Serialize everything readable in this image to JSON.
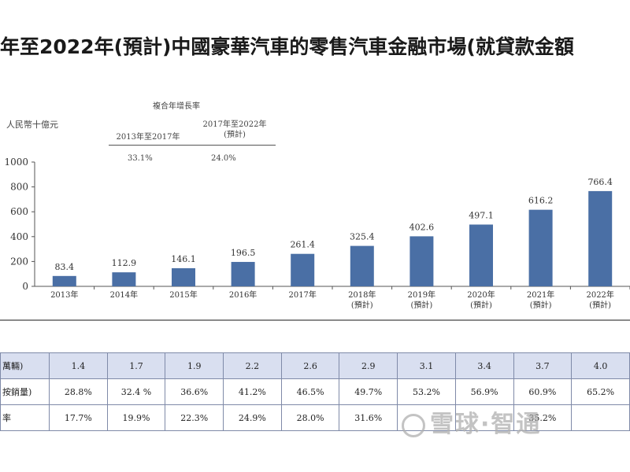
{
  "title": "年至2022年(預計)中國豪華汽車的零售汽車金融市場(就貸款金額",
  "unit_label": "人民幣十億元",
  "cagr": {
    "heading": "複合年增長率",
    "col1_label": "2013年至2017年",
    "col1_value": "33.1%",
    "col2_label_line1": "2017年至2022年",
    "col2_label_line2": "(預計)",
    "col2_value": "24.0%"
  },
  "chart_data": {
    "type": "bar",
    "categories": [
      "2013年",
      "2014年",
      "2015年",
      "2016年",
      "2017年",
      "2018年\n(預計)",
      "2019年\n(預計)",
      "2020年\n(預計)",
      "2021年\n(預計)",
      "2022年\n(預計)"
    ],
    "values": [
      83.4,
      112.9,
      146.1,
      196.5,
      261.4,
      325.4,
      402.6,
      497.1,
      616.2,
      766.4
    ],
    "value_labels": [
      "83.4",
      "112.9",
      "146.1",
      "196.5",
      "261.4",
      "325.4",
      "402.6",
      "497.1",
      "616.2",
      "766.4"
    ],
    "yticks": [
      "0",
      "200",
      "400",
      "600",
      "800",
      "1000"
    ],
    "ylim": [
      0,
      1000
    ],
    "bar_color": "#4a6fa5",
    "grid": false,
    "title": "",
    "xlabel": "",
    "ylabel": "人民幣十億元"
  },
  "table": {
    "rows": [
      {
        "label": "萬輛)",
        "cells": [
          "1.4",
          "1.7",
          "1.9",
          "2.2",
          "2.6",
          "2.9",
          "3.1",
          "3.4",
          "3.7",
          "4.0"
        ],
        "shaded": true
      },
      {
        "label": "按銷量)",
        "cells": [
          "28.8%",
          "32.4 %",
          "36.6%",
          "41.2%",
          "46.5%",
          "49.7%",
          "53.2%",
          "56.9%",
          "60.9%",
          "65.2%"
        ],
        "shaded": false
      },
      {
        "label": "率",
        "cells": [
          "17.7%",
          "19.9%",
          "22.3%",
          "24.9%",
          "28.0%",
          "31.6%",
          "",
          "",
          "35.2%",
          ""
        ],
        "shaded": false
      }
    ]
  },
  "watermark": "雪球·智通",
  "colors": {
    "bar": "#4a6fa5",
    "table_shade": "#d9dff0",
    "table_border": "#7f8aa8"
  }
}
